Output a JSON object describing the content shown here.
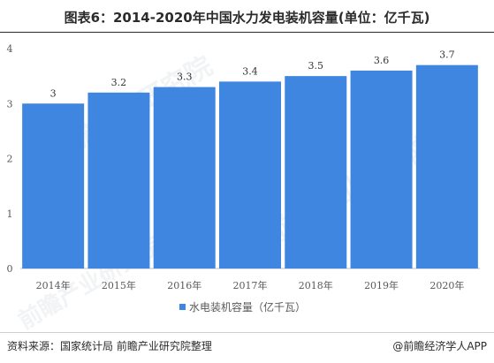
{
  "title": "图表6：2014-2020年中国水力发电装机容量(单位：亿千瓦)",
  "source": "资料来源：国家统计局 前瞻产业研究院整理",
  "brand": "@前瞻经济学人APP",
  "watermark": "前瞻产业研究院",
  "colors": {
    "bar": "#3f86e0",
    "axis": "#bfbfbf",
    "text": "#595959"
  },
  "chart_data": {
    "type": "bar",
    "categories": [
      "2014年",
      "2015年",
      "2016年",
      "2017年",
      "2018年",
      "2019年",
      "2020年"
    ],
    "series": [
      {
        "name": "水电装机容量（亿千瓦）",
        "values": [
          3,
          3.2,
          3.3,
          3.4,
          3.5,
          3.6,
          3.7
        ]
      }
    ],
    "data_labels": [
      "3",
      "3.2",
      "3.3",
      "3.4",
      "3.5",
      "3.6",
      "3.7"
    ],
    "yticks": [
      0,
      1,
      2,
      3,
      4
    ],
    "ylim": [
      0,
      4
    ],
    "legend_position": "bottom",
    "grid": false
  }
}
